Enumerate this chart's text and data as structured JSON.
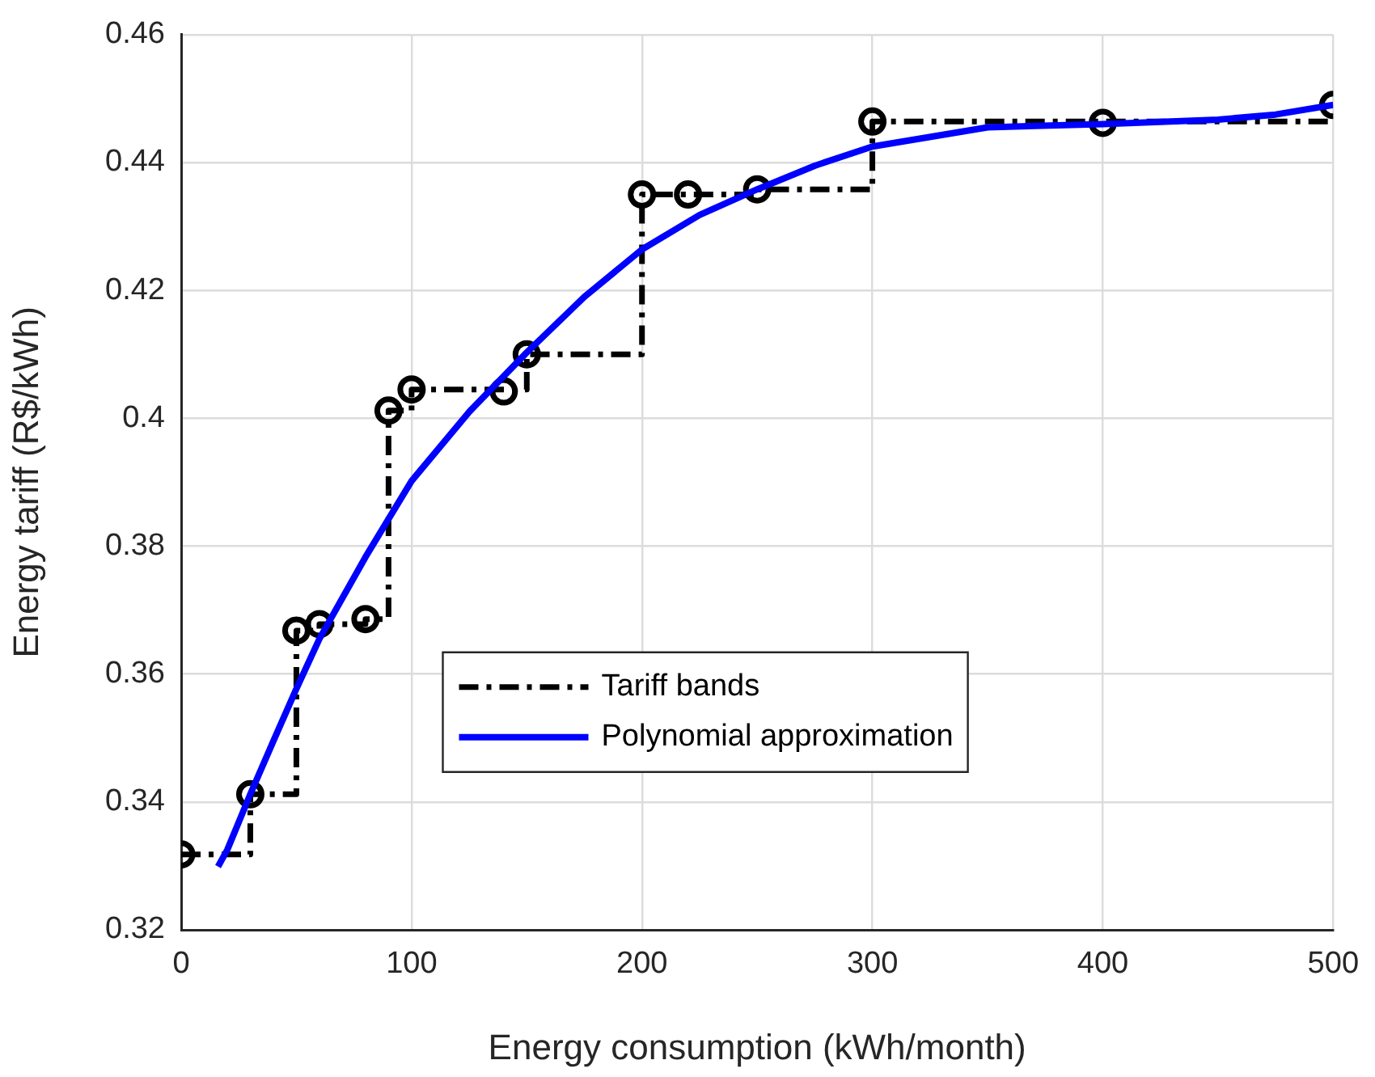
{
  "chart_data": {
    "type": "line",
    "xlabel": "Energy consumption (kWh/month)",
    "ylabel": "Energy tariff (R$/kWh)",
    "xlim": [
      0,
      500
    ],
    "xticks": [
      0,
      100,
      200,
      300,
      400,
      500
    ],
    "ylim": [
      0.32,
      0.46
    ],
    "yticks": [
      0.32,
      0.34,
      0.36,
      0.38,
      0.4,
      0.42,
      0.44,
      0.46
    ],
    "grid": true,
    "legend": "bottom",
    "series": [
      {
        "name": "Tariff bands",
        "type": "step",
        "color": "#000000",
        "line_style": "dashed",
        "marker": "none",
        "x": [
          0,
          30,
          50,
          60,
          80,
          90,
          100,
          150,
          200,
          250,
          300,
          500
        ],
        "values": [
          0.3318,
          0.3412,
          0.3668,
          0.3678,
          0.3686,
          0.4012,
          0.4045,
          0.41,
          0.435,
          0.4358,
          0.4464,
          0.4464
        ]
      },
      {
        "type": "scatter",
        "color": "#000000",
        "marker": "circle",
        "x": [
          0,
          30,
          50,
          60,
          80,
          90,
          100,
          140,
          150,
          200,
          220,
          250,
          300,
          400,
          500
        ],
        "values": [
          0.3318,
          0.3412,
          0.3668,
          0.3678,
          0.3686,
          0.4012,
          0.4045,
          0.4042,
          0.41,
          0.435,
          0.435,
          0.4358,
          0.4464,
          0.4462,
          0.449
        ]
      },
      {
        "name": "Polynomial approximation",
        "type": "line",
        "color": "#0000ff",
        "line_style": "solid",
        "marker": "none",
        "x": [
          16,
          20,
          30,
          40,
          50,
          60,
          80,
          100,
          125,
          150,
          175,
          200,
          225,
          250,
          275,
          300,
          350,
          400,
          450,
          475,
          500
        ],
        "values": [
          0.3299,
          0.3325,
          0.3412,
          0.3495,
          0.3577,
          0.3655,
          0.3783,
          0.3902,
          0.401,
          0.4103,
          0.419,
          0.4264,
          0.4318,
          0.4358,
          0.4395,
          0.4425,
          0.4455,
          0.446,
          0.4467,
          0.4475,
          0.449
        ]
      }
    ]
  }
}
